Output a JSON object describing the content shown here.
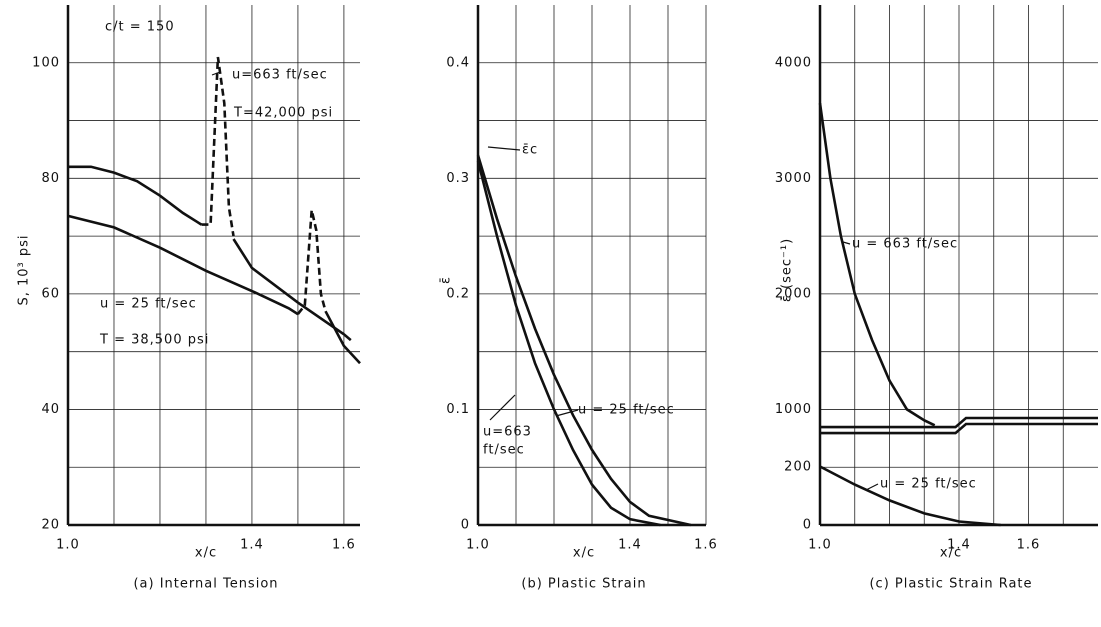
{
  "chart_data": [
    {
      "type": "line",
      "caption": "(a) Internal Tension",
      "xlabel": "x/c",
      "ylabel": "S, 10³ psi",
      "xlim": [
        1.0,
        1.635
      ],
      "xticks": [
        {
          "value": 1.0,
          "label": "1.0"
        },
        1.4,
        1.6
      ],
      "xminor": [
        1.1,
        1.2,
        1.3,
        1.5
      ],
      "ylim": [
        20,
        110
      ],
      "yticks": [
        20,
        40,
        60,
        80,
        100
      ],
      "yminor": [
        30,
        50,
        70,
        90
      ],
      "grid": true,
      "annotations": [
        "c/t = 150",
        "u=663 ft/sec",
        "T=42,000 psi",
        "u = 25 ft/sec",
        "T = 38,500 psi"
      ],
      "series": [
        {
          "color": "#111111",
          "style": "solid",
          "x": [
            1.0,
            1.05,
            1.1,
            1.15,
            1.2,
            1.25,
            1.28,
            1.29
          ],
          "values": [
            82,
            82,
            81,
            79.5,
            77,
            74,
            72.5,
            72
          ]
        },
        {
          "color": "#111111",
          "style": "dashed",
          "x": [
            1.29,
            1.31,
            1.326,
            1.34,
            1.35,
            1.36
          ],
          "values": [
            72,
            72,
            101,
            93,
            75,
            70
          ]
        },
        {
          "color": "#111111",
          "style": "solid",
          "x": [
            1.36,
            1.4,
            1.5,
            1.6,
            1.615
          ],
          "values": [
            69.5,
            64.5,
            58.5,
            53,
            52
          ]
        },
        {
          "color": "#111111",
          "style": "solid",
          "x": [
            1.0,
            1.1,
            1.2,
            1.3,
            1.4,
            1.48,
            1.5
          ],
          "values": [
            73.5,
            71.5,
            68,
            64,
            60.5,
            57.5,
            56.5
          ]
        },
        {
          "color": "#111111",
          "style": "dashed",
          "x": [
            1.5,
            1.515,
            1.53,
            1.54,
            1.55,
            1.56
          ],
          "values": [
            56.5,
            58,
            74.5,
            71,
            60,
            57
          ]
        },
        {
          "color": "#111111",
          "style": "solid",
          "x": [
            1.56,
            1.6,
            1.635
          ],
          "values": [
            57,
            51,
            48
          ]
        }
      ]
    },
    {
      "type": "line",
      "caption": "(b) Plastic Strain",
      "xlabel": "x/c",
      "ylabel": "ε̄",
      "xlim": [
        1.0,
        1.6
      ],
      "xticks": [
        {
          "value": 1.0,
          "label": "1.0"
        },
        1.4,
        1.6
      ],
      "xminor": [
        1.1,
        1.2,
        1.3,
        1.5
      ],
      "ylim": [
        0,
        0.45
      ],
      "yticks": [
        0,
        0.1,
        0.2,
        0.3,
        0.4
      ],
      "yminor": [
        0.05,
        0.15,
        0.25,
        0.35
      ],
      "grid": true,
      "annotations": [
        "ε̄c",
        "u=663",
        "ft/sec",
        "u = 25 ft/sec"
      ],
      "series": [
        {
          "color": "#111111",
          "style": "solid",
          "x": [
            1.0,
            1.05,
            1.1,
            1.15,
            1.2,
            1.25,
            1.3,
            1.35,
            1.4,
            1.48
          ],
          "values": [
            0.315,
            0.25,
            0.19,
            0.14,
            0.1,
            0.065,
            0.035,
            0.015,
            0.005,
            0
          ]
        },
        {
          "color": "#111111",
          "style": "solid",
          "x": [
            1.0,
            1.05,
            1.1,
            1.15,
            1.2,
            1.25,
            1.3,
            1.35,
            1.4,
            1.45,
            1.56
          ],
          "values": [
            0.32,
            0.265,
            0.215,
            0.17,
            0.13,
            0.095,
            0.065,
            0.04,
            0.02,
            0.008,
            0
          ]
        }
      ]
    },
    {
      "type": "line",
      "caption": "(c) Plastic Strain Rate",
      "xlabel": "x/c",
      "ylabel": "ε̄̇ (sec⁻¹)",
      "xlim": [
        1.0,
        1.8
      ],
      "xticks": [
        {
          "value": 1.0,
          "label": "1.0"
        },
        1.4,
        1.6
      ],
      "xminor": [
        1.1,
        1.2,
        1.3,
        1.5,
        1.7
      ],
      "ylim": [
        0,
        4500
      ],
      "yscale": "broken",
      "ybreak": [
        200,
        1000
      ],
      "yticks": [
        0,
        200,
        1000,
        2000,
        3000,
        4000
      ],
      "yminor": [
        1500,
        2500,
        3500
      ],
      "grid": true,
      "annotations": [
        "u = 663 ft/sec",
        "u = 25 ft/sec"
      ],
      "series": [
        {
          "color": "#111111",
          "style": "solid",
          "x": [
            1.0,
            1.03,
            1.06,
            1.1,
            1.15,
            1.2,
            1.25,
            1.3,
            1.33
          ],
          "values": [
            3650,
            3000,
            2500,
            2000,
            1600,
            1250,
            1000,
            850,
            780
          ]
        },
        {
          "color": "#111111",
          "style": "solid",
          "x": [
            1.0,
            1.39,
            1.42,
            1.8
          ],
          "values": [
            756,
            756,
            881,
            881
          ]
        },
        {
          "color": "#111111",
          "style": "solid",
          "x": [
            1.0,
            1.39,
            1.42,
            1.8
          ],
          "values": [
            673,
            673,
            798,
            798
          ]
        },
        {
          "color": "#111111",
          "style": "solid",
          "x": [
            1.0,
            1.1,
            1.2,
            1.3,
            1.4,
            1.52
          ],
          "values": [
            210,
            140,
            85,
            40,
            12,
            0
          ]
        }
      ]
    }
  ]
}
